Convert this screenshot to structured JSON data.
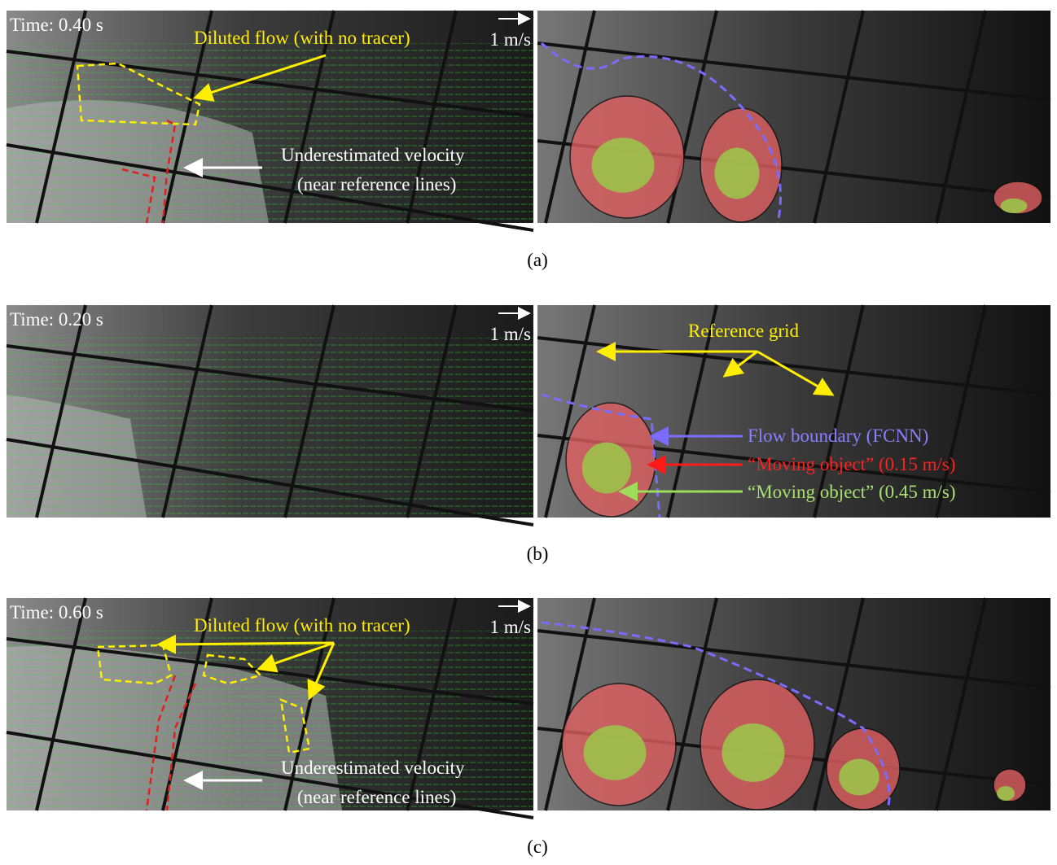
{
  "panels": [
    {
      "label": "(a)",
      "time": "Time: 0.40 s",
      "scale": "1 m/s",
      "annotations": [
        "Diluted flow (with no tracer)",
        "Underestimated velocity",
        "(near reference lines)"
      ]
    },
    {
      "label": "(b)",
      "time": "Time: 0.20 s",
      "scale": "1 m/s",
      "annotations": [
        "Reference grid",
        "Flow boundary (FCNN)",
        "“Moving object” (0.15 m/s)",
        "“Moving object” (0.45 m/s)"
      ]
    },
    {
      "label": "(c)",
      "time": "Time: 0.60 s",
      "scale": "1 m/s",
      "annotations": [
        "Diluted flow (with no tracer)",
        "Underestimated velocity",
        "(near reference lines)"
      ]
    }
  ]
}
